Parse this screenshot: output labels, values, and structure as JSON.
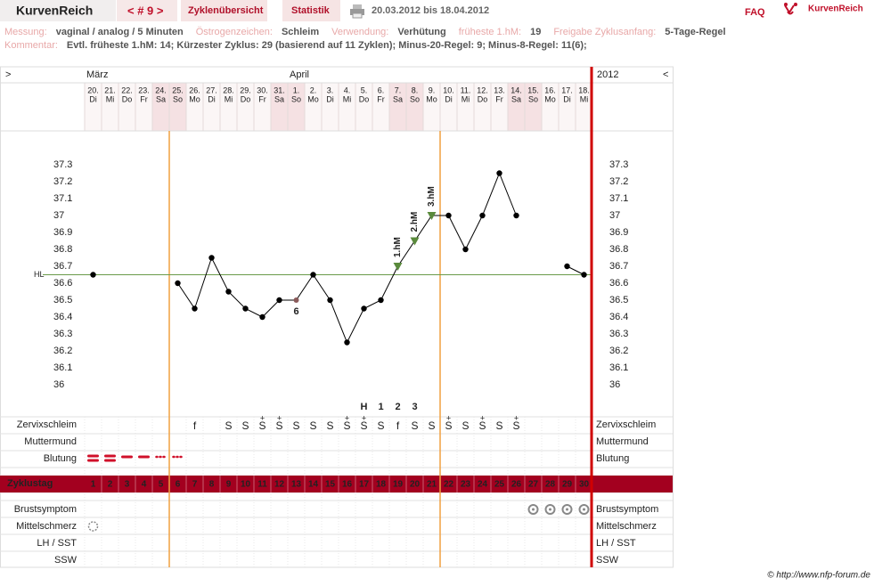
{
  "header": {
    "title": "KurvenReich",
    "cycle_nav": "< # 9 >",
    "tabs": [
      "Zyklenübersicht",
      "Statistik"
    ],
    "date_range": "20.03.2012 bis 18.04.2012",
    "faq": "FAQ",
    "logo": "KurvenReich"
  },
  "info": {
    "fields": [
      {
        "label": "Messung:",
        "value": "vaginal / analog / 5 Minuten"
      },
      {
        "label": "Östrogenzeichen:",
        "value": "Schleim"
      },
      {
        "label": "Verwendung:",
        "value": "Verhütung"
      },
      {
        "label": "früheste 1.hM:",
        "value": "19"
      },
      {
        "label": "Freigabe Zyklusanfang:",
        "value": "5-Tage-Regel"
      }
    ],
    "comment_label": "Kommentar:",
    "comment": "Evtl. früheste 1.hM: 14; Kürzester Zyklus: 29 (basierend auf 11 Zyklen); Minus-20-Regel: 9; Minus-8-Regel: 11(6);"
  },
  "chart_data": {
    "type": "line",
    "nav_left": ">",
    "nav_right": "<",
    "year": "2012",
    "months": [
      "März",
      null,
      null,
      null,
      null,
      null,
      null,
      null,
      null,
      null,
      null,
      null,
      "April",
      null,
      null,
      null,
      null,
      null,
      null,
      null,
      null,
      null,
      null,
      null,
      null,
      null,
      null,
      null,
      null,
      null
    ],
    "categories": [
      "20.",
      "21.",
      "22.",
      "23.",
      "24.",
      "25.",
      "26.",
      "27.",
      "28.",
      "29.",
      "30.",
      "31.",
      "1.",
      "2.",
      "3.",
      "4.",
      "5.",
      "6.",
      "7.",
      "8.",
      "9.",
      "10.",
      "11.",
      "12.",
      "13.",
      "14.",
      "15.",
      "16.",
      "17.",
      "18."
    ],
    "weekdays": [
      "Di",
      "Mi",
      "Do",
      "Fr",
      "Sa",
      "So",
      "Mo",
      "Di",
      "Mi",
      "Do",
      "Fr",
      "Sa",
      "So",
      "Mo",
      "Di",
      "Mi",
      "Do",
      "Fr",
      "Sa",
      "So",
      "Mo",
      "Di",
      "Mi",
      "Do",
      "Fr",
      "Sa",
      "So",
      "Mo",
      "Di",
      "Mi"
    ],
    "weekend_days": [
      5,
      6,
      12,
      13,
      19,
      20,
      26,
      27
    ],
    "values": [
      36.65,
      null,
      null,
      null,
      null,
      36.6,
      36.45,
      36.75,
      36.55,
      36.45,
      36.4,
      36.5,
      36.5,
      36.65,
      36.5,
      36.25,
      36.45,
      36.5,
      36.7,
      36.85,
      37.0,
      37.0,
      36.8,
      37.0,
      37.25,
      37.0,
      null,
      null,
      36.7,
      36.65
    ],
    "color": "#000000",
    "point_notes": [
      null,
      null,
      null,
      null,
      null,
      null,
      null,
      null,
      null,
      null,
      null,
      null,
      "6",
      null,
      null,
      null,
      null,
      null,
      null,
      null,
      null,
      null,
      null,
      null,
      null,
      null,
      null,
      null,
      null,
      null
    ],
    "hm_labels": [
      null,
      null,
      null,
      null,
      null,
      null,
      null,
      null,
      null,
      null,
      null,
      null,
      null,
      null,
      null,
      null,
      null,
      null,
      "1.hM",
      "2.hM",
      "3.hM",
      null,
      null,
      null,
      null,
      null,
      null,
      null,
      null,
      null
    ],
    "hl": {
      "label": "HL",
      "value": 36.65,
      "color": "#6a9a4a"
    },
    "ylim": [
      35.8,
      37.5
    ],
    "yticks": [
      36,
      36.1,
      36.2,
      36.3,
      36.4,
      36.5,
      36.6,
      36.7,
      36.8,
      36.9,
      37,
      37.1,
      37.2,
      37.3
    ],
    "grid": false,
    "peak_marks": [
      null,
      null,
      null,
      null,
      null,
      null,
      null,
      null,
      null,
      null,
      null,
      null,
      null,
      null,
      null,
      null,
      "H",
      "1",
      "2",
      "3",
      null,
      null,
      null,
      null,
      null,
      null,
      null,
      null,
      null,
      null
    ],
    "cervix": [
      null,
      null,
      null,
      null,
      null,
      null,
      "f",
      null,
      "S",
      "S",
      "S",
      "S",
      "S",
      "S",
      "S",
      "S",
      "S",
      "S",
      "f",
      "S",
      "S",
      "S",
      "S",
      "S",
      "S",
      "S",
      null,
      null,
      null,
      null
    ],
    "cervix_plus": [
      null,
      null,
      null,
      null,
      null,
      null,
      null,
      null,
      null,
      null,
      "+",
      "+",
      null,
      null,
      null,
      "+",
      "+",
      null,
      null,
      null,
      null,
      "+",
      null,
      "+",
      null,
      "+",
      null,
      null,
      null,
      null
    ],
    "bleeding": [
      3,
      3,
      2,
      2,
      1,
      1,
      null,
      null,
      null,
      null,
      null,
      null,
      null,
      null,
      null,
      null,
      null,
      null,
      null,
      null,
      null,
      null,
      null,
      null,
      null,
      null,
      null,
      null,
      null,
      null
    ],
    "cycle_days": [
      1,
      2,
      3,
      4,
      5,
      6,
      7,
      8,
      9,
      10,
      11,
      12,
      13,
      14,
      15,
      16,
      17,
      18,
      19,
      20,
      21,
      22,
      23,
      24,
      25,
      26,
      27,
      28,
      29,
      30
    ],
    "fertile_start": 6,
    "fertile_end": 21,
    "mittelschmerz_days": [
      1
    ],
    "breast_symptom_days": [
      27,
      28,
      29,
      30
    ],
    "row_labels": {
      "cervix": "Zervixschleim",
      "os": "Muttermund",
      "bleeding": "Blutung",
      "cycle_day": "Zyklustag",
      "breast": "Brustsymptom",
      "mittelschmerz": "Mittelschmerz",
      "lh": "LH / SST",
      "ssw": "SSW"
    }
  },
  "footer": "© http://www.nfp-forum.de"
}
